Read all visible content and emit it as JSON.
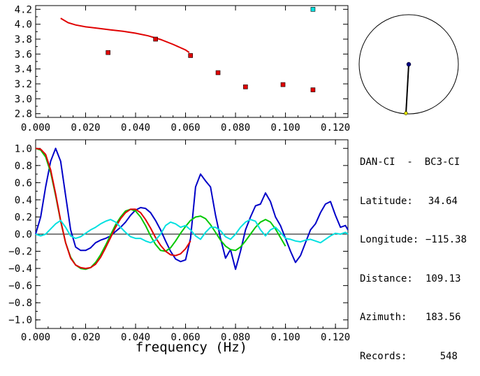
{
  "top_chart": {
    "type": "scatter",
    "xlim": [
      0.0,
      0.125
    ],
    "ylim": [
      2.75,
      4.25
    ],
    "xticks": [
      "0.000",
      "0.020",
      "0.040",
      "0.060",
      "0.080",
      "0.100",
      "0.120"
    ],
    "yticks": [
      "2.8",
      "3.0",
      "3.2",
      "3.4",
      "3.6",
      "3.8",
      "4.0",
      "4.2"
    ],
    "points_red": [
      {
        "x": 0.029,
        "y": 3.62
      },
      {
        "x": 0.048,
        "y": 3.8
      },
      {
        "x": 0.062,
        "y": 3.58
      },
      {
        "x": 0.073,
        "y": 3.35
      },
      {
        "x": 0.084,
        "y": 3.16
      },
      {
        "x": 0.099,
        "y": 3.19
      },
      {
        "x": 0.111,
        "y": 3.12
      }
    ],
    "points_cyan": [
      {
        "x": 0.111,
        "y": 4.2
      }
    ],
    "curve": {
      "x": [
        0.01,
        0.013,
        0.016,
        0.02,
        0.025,
        0.03,
        0.035,
        0.04,
        0.045,
        0.05,
        0.055,
        0.06,
        0.0615
      ],
      "y": [
        4.08,
        4.02,
        3.99,
        3.965,
        3.945,
        3.925,
        3.905,
        3.88,
        3.845,
        3.795,
        3.73,
        3.655,
        3.62
      ]
    },
    "colors": {
      "red": "#e00000",
      "cyan": "#00e0e0",
      "curve": "#e00000"
    }
  },
  "bottom_chart": {
    "type": "line",
    "xlim": [
      0.0,
      0.125
    ],
    "ylim": [
      -1.1,
      1.1
    ],
    "xticks": [
      "0.000",
      "0.020",
      "0.040",
      "0.060",
      "0.080",
      "0.100",
      "0.120"
    ],
    "yticks": [
      "1.0",
      "0.8",
      "0.6",
      "0.4",
      "0.2",
      "0.0",
      "−0.2",
      "−0.4",
      "−0.6",
      "−0.8",
      "−1.0"
    ],
    "xlabel": "frequency (Hz)",
    "series": [
      {
        "color": "#0000c8",
        "x": [
          0.0,
          0.002,
          0.004,
          0.006,
          0.008,
          0.01,
          0.012,
          0.014,
          0.016,
          0.018,
          0.02,
          0.022,
          0.024,
          0.026,
          0.028,
          0.03,
          0.032,
          0.034,
          0.036,
          0.038,
          0.04,
          0.042,
          0.044,
          0.046,
          0.048,
          0.05,
          0.052,
          0.054,
          0.056,
          0.058,
          0.06,
          0.062,
          0.064,
          0.066,
          0.068,
          0.07,
          0.072,
          0.074,
          0.076,
          0.078,
          0.08,
          0.082,
          0.084,
          0.086,
          0.088,
          0.09,
          0.092,
          0.094,
          0.096,
          0.098,
          0.1,
          0.102,
          0.104,
          0.106,
          0.108,
          0.11,
          0.112,
          0.114,
          0.116,
          0.118,
          0.12,
          0.122,
          0.124,
          0.125
        ],
        "y": [
          0.0,
          0.2,
          0.55,
          0.85,
          1.0,
          0.85,
          0.45,
          0.05,
          -0.15,
          -0.19,
          -0.19,
          -0.16,
          -0.1,
          -0.07,
          -0.05,
          -0.02,
          0.03,
          0.08,
          0.14,
          0.22,
          0.28,
          0.31,
          0.3,
          0.25,
          0.16,
          0.05,
          -0.08,
          -0.2,
          -0.29,
          -0.32,
          -0.3,
          -0.05,
          0.55,
          0.7,
          0.62,
          0.55,
          0.22,
          -0.05,
          -0.28,
          -0.18,
          -0.41,
          -0.2,
          0.05,
          0.2,
          0.33,
          0.35,
          0.48,
          0.38,
          0.2,
          0.1,
          -0.05,
          -0.2,
          -0.33,
          -0.25,
          -0.1,
          0.05,
          0.12,
          0.25,
          0.35,
          0.38,
          0.22,
          0.08,
          0.1,
          0.05
        ]
      },
      {
        "color": "#e00000",
        "x": [
          0.0,
          0.002,
          0.004,
          0.006,
          0.008,
          0.01,
          0.012,
          0.014,
          0.016,
          0.018,
          0.02,
          0.022,
          0.024,
          0.026,
          0.028,
          0.03,
          0.032,
          0.034,
          0.036,
          0.038,
          0.04,
          0.042,
          0.044,
          0.046,
          0.048,
          0.05,
          0.052,
          0.054,
          0.056,
          0.058,
          0.06,
          0.062
        ],
        "y": [
          1.0,
          0.99,
          0.93,
          0.75,
          0.47,
          0.16,
          -0.1,
          -0.28,
          -0.36,
          -0.39,
          -0.4,
          -0.39,
          -0.35,
          -0.27,
          -0.16,
          -0.04,
          0.08,
          0.18,
          0.25,
          0.29,
          0.29,
          0.25,
          0.17,
          0.07,
          -0.04,
          -0.13,
          -0.2,
          -0.24,
          -0.25,
          -0.23,
          -0.17,
          -0.08
        ]
      },
      {
        "color": "#00c800",
        "x": [
          0.0,
          0.002,
          0.004,
          0.006,
          0.008,
          0.01,
          0.012,
          0.014,
          0.016,
          0.018,
          0.02,
          0.022,
          0.024,
          0.026,
          0.028,
          0.03,
          0.032,
          0.034,
          0.036,
          0.038,
          0.04,
          0.042,
          0.044,
          0.046,
          0.048,
          0.05,
          0.052,
          0.054,
          0.056,
          0.058,
          0.06,
          0.062,
          0.064,
          0.066,
          0.068,
          0.07,
          0.072,
          0.074,
          0.076,
          0.078,
          0.08,
          0.082,
          0.084,
          0.086,
          0.088,
          0.09,
          0.092,
          0.094,
          0.096,
          0.098,
          0.1
        ],
        "y": [
          1.0,
          0.98,
          0.9,
          0.72,
          0.45,
          0.15,
          -0.1,
          -0.27,
          -0.36,
          -0.4,
          -0.41,
          -0.39,
          -0.33,
          -0.24,
          -0.13,
          -0.01,
          0.11,
          0.2,
          0.27,
          0.29,
          0.27,
          0.2,
          0.1,
          -0.02,
          -0.12,
          -0.19,
          -0.2,
          -0.16,
          -0.08,
          0.01,
          0.09,
          0.16,
          0.2,
          0.21,
          0.18,
          0.11,
          0.02,
          -0.07,
          -0.14,
          -0.18,
          -0.19,
          -0.15,
          -0.08,
          0.0,
          0.08,
          0.14,
          0.17,
          0.14,
          0.06,
          -0.04,
          -0.14
        ]
      },
      {
        "color": "#00e0e0",
        "x": [
          0.0,
          0.002,
          0.004,
          0.006,
          0.008,
          0.01,
          0.012,
          0.014,
          0.016,
          0.018,
          0.02,
          0.022,
          0.024,
          0.026,
          0.028,
          0.03,
          0.032,
          0.034,
          0.036,
          0.038,
          0.04,
          0.042,
          0.044,
          0.046,
          0.048,
          0.05,
          0.052,
          0.054,
          0.056,
          0.058,
          0.06,
          0.062,
          0.064,
          0.066,
          0.068,
          0.07,
          0.072,
          0.074,
          0.076,
          0.078,
          0.08,
          0.082,
          0.084,
          0.086,
          0.088,
          0.09,
          0.092,
          0.094,
          0.096,
          0.098,
          0.1,
          0.102,
          0.104,
          0.106,
          0.108,
          0.11,
          0.112,
          0.114,
          0.116,
          0.118,
          0.12,
          0.122,
          0.124,
          0.125
        ],
        "y": [
          0.0,
          -0.02,
          0.0,
          0.06,
          0.12,
          0.16,
          0.08,
          -0.02,
          -0.05,
          -0.03,
          0.01,
          0.05,
          0.08,
          0.12,
          0.15,
          0.17,
          0.14,
          0.08,
          0.02,
          -0.03,
          -0.05,
          -0.05,
          -0.08,
          -0.1,
          -0.07,
          0.0,
          0.1,
          0.14,
          0.12,
          0.08,
          0.1,
          0.05,
          -0.02,
          -0.06,
          0.02,
          0.08,
          0.08,
          0.04,
          -0.03,
          -0.06,
          0.0,
          0.08,
          0.14,
          0.17,
          0.15,
          0.05,
          -0.02,
          0.05,
          0.08,
          0.02,
          -0.05,
          -0.06,
          -0.08,
          -0.09,
          -0.07,
          -0.06,
          -0.08,
          -0.1,
          -0.06,
          -0.02,
          0.01,
          0.0,
          0.02,
          0.0
        ]
      }
    ]
  },
  "map_inset": {
    "center_dot_color": "#000080",
    "end_dot_color": "#e0e000"
  },
  "info": {
    "title": "DAN-CI  -  BC3-CI",
    "latitude_label": "Latitude:",
    "latitude_value": "34.64",
    "longitude_label": "Longitude:",
    "longitude_value": "−115.38",
    "distance_label": "Distance:",
    "distance_value": "109.13",
    "azimuth_label": "Azimuth:",
    "azimuth_value": "183.56",
    "records_label": "Records:",
    "records_value": "548"
  }
}
